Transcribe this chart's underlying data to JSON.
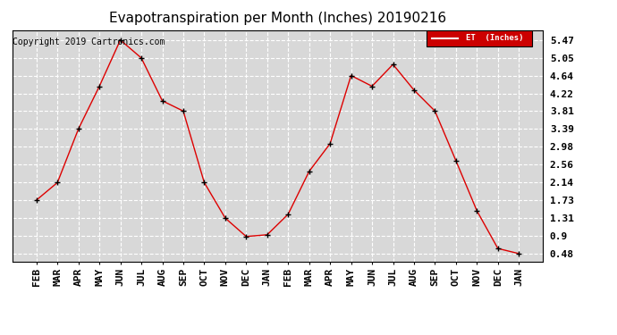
{
  "title": "Evapotranspiration per Month (Inches) 20190216",
  "copyright": "Copyright 2019 Cartronics.com",
  "legend_label": "ET  (Inches)",
  "line_color": "#dd0000",
  "marker_color": "#000000",
  "background_color": "#ffffff",
  "plot_bg": "#d8d8d8",
  "months": [
    "FEB",
    "MAR",
    "APR",
    "MAY",
    "JUN",
    "JUL",
    "AUG",
    "SEP",
    "OCT",
    "NOV",
    "DEC",
    "JAN",
    "FEB",
    "MAR",
    "APR",
    "MAY",
    "JUN",
    "JUL",
    "AUG",
    "SEP",
    "OCT",
    "NOV",
    "DEC",
    "JAN"
  ],
  "values": [
    1.73,
    2.14,
    3.39,
    4.39,
    5.47,
    5.05,
    4.05,
    3.81,
    2.14,
    1.31,
    0.88,
    0.92,
    1.4,
    2.4,
    3.05,
    4.64,
    4.39,
    4.9,
    4.3,
    3.81,
    2.65,
    1.48,
    0.6,
    0.48
  ],
  "yticks": [
    0.48,
    0.9,
    1.31,
    1.73,
    2.14,
    2.56,
    2.98,
    3.39,
    3.81,
    4.22,
    4.64,
    5.05,
    5.47
  ],
  "ylim": [
    0.3,
    5.7
  ],
  "title_fontsize": 11,
  "tick_fontsize": 8,
  "copyright_fontsize": 7
}
